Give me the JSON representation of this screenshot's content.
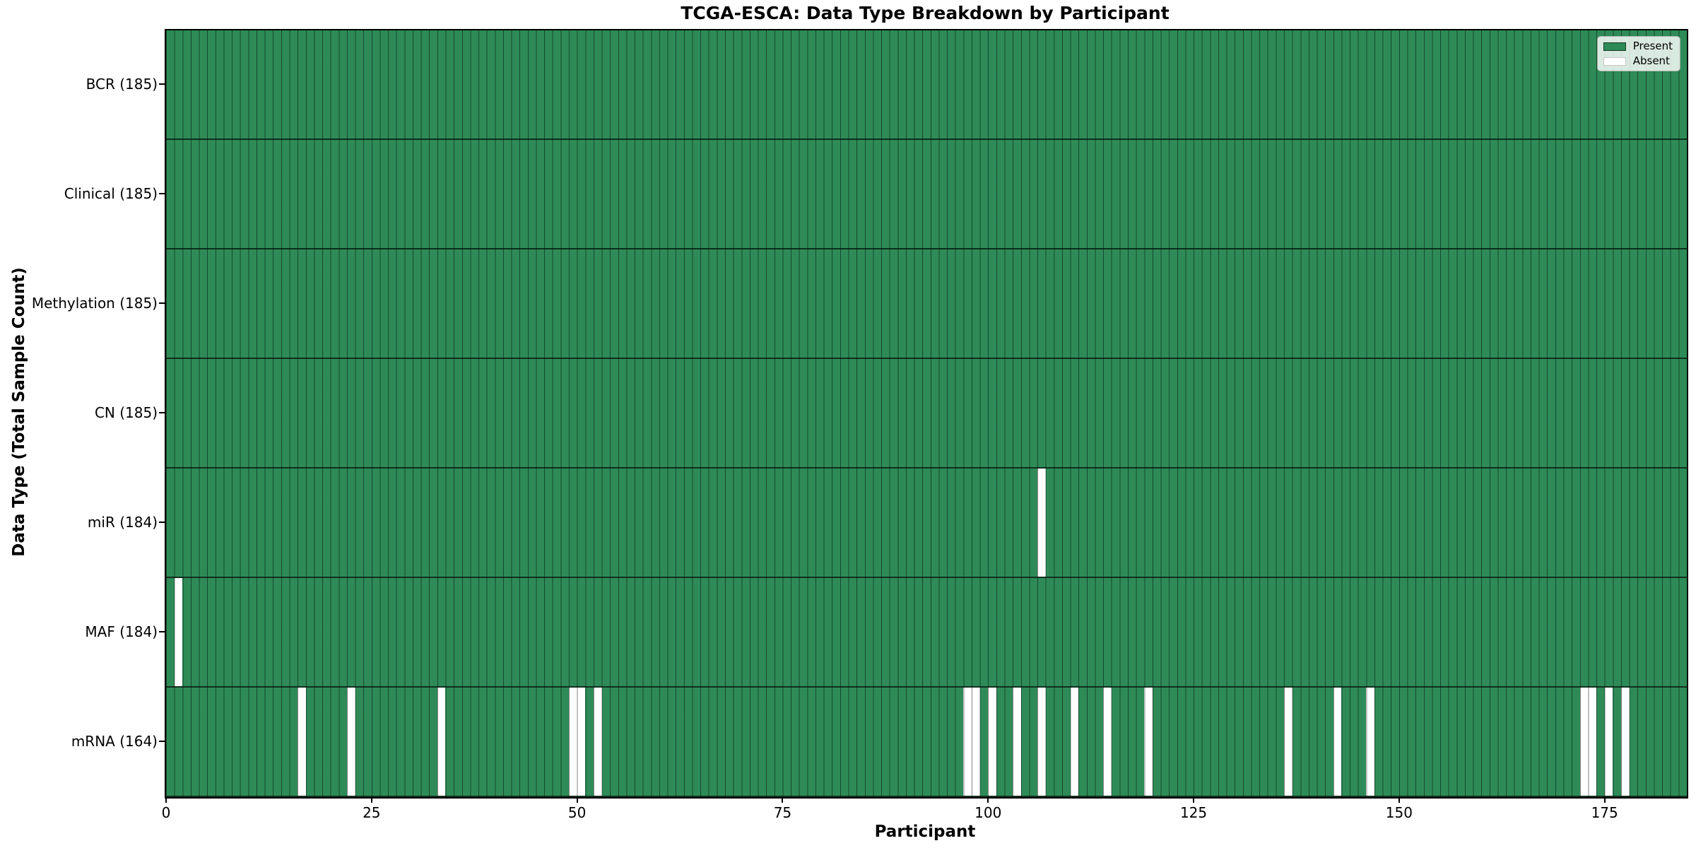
{
  "chart_data": {
    "type": "heatmap",
    "title": "TCGA-ESCA: Data Type Breakdown by Participant",
    "xlabel": "Participant",
    "ylabel": "Data Type (Total Sample Count)",
    "n_participants": 185,
    "x_axis_range": [
      0,
      185
    ],
    "x_ticks": [
      0,
      25,
      50,
      75,
      100,
      125,
      150,
      175
    ],
    "grid": "per-participant vertical cell edges",
    "legend_position": "upper right",
    "legend": [
      {
        "label": "Present",
        "color": "#2E8B57"
      },
      {
        "label": "Absent",
        "color": "#FFFFFF"
      }
    ],
    "colors": {
      "present": "#2E8B57",
      "absent": "#FFFFFF",
      "cell_edge": "rgba(0,0,0,0.48)",
      "text": "#000000",
      "background": "#FFFFFF"
    },
    "rows": [
      {
        "label": "BCR (185)",
        "data_type": "BCR",
        "count": 185,
        "absent_participants": []
      },
      {
        "label": "Clinical (185)",
        "data_type": "Clinical",
        "count": 185,
        "absent_participants": []
      },
      {
        "label": "Methylation (185)",
        "data_type": "Methylation",
        "count": 185,
        "absent_participants": []
      },
      {
        "label": "CN (185)",
        "data_type": "CN",
        "count": 185,
        "absent_participants": []
      },
      {
        "label": "miR (184)",
        "data_type": "miR",
        "count": 184,
        "absent_participants": [
          106
        ]
      },
      {
        "label": "MAF (184)",
        "data_type": "MAF",
        "count": 184,
        "absent_participants": [
          1
        ]
      },
      {
        "label": "mRNA (164)",
        "data_type": "mRNA",
        "count": 164,
        "absent_participants": [
          16,
          22,
          33,
          49,
          50,
          52,
          97,
          98,
          100,
          103,
          106,
          110,
          114,
          119,
          136,
          142,
          146,
          172,
          173,
          175,
          177
        ]
      }
    ]
  }
}
